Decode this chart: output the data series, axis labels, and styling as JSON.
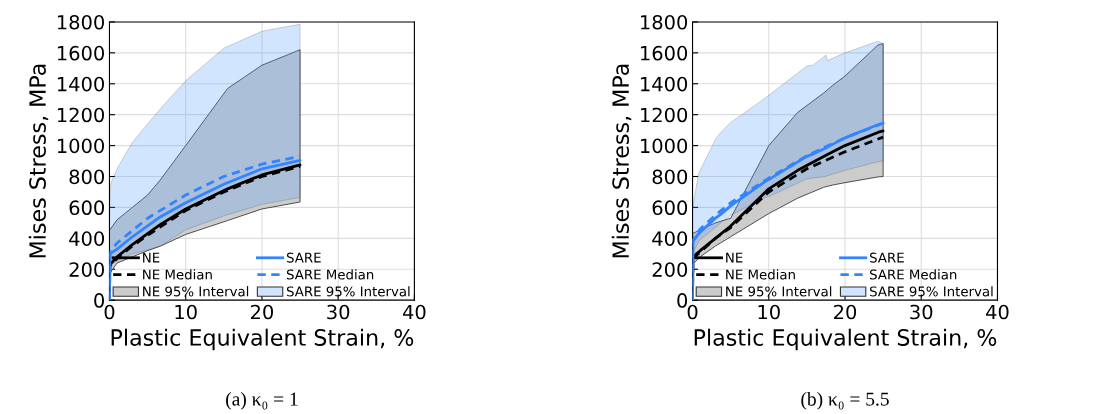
{
  "chart_data": [
    {
      "type": "line",
      "xlabel": "Plastic Equivalent Strain, %",
      "ylabel": "Mises Stress, MPa",
      "xlim": [
        0,
        40
      ],
      "ylim": [
        0,
        1800
      ],
      "xticks": [
        0,
        10,
        20,
        30,
        40
      ],
      "yticks": [
        0,
        200,
        400,
        600,
        800,
        1000,
        1200,
        1400,
        1600,
        1800
      ],
      "grid": true,
      "legend": "bottom",
      "annotations": [
        "(a) κ₀ = 1"
      ],
      "series": [
        {
          "name": "NE",
          "color": "#000000",
          "line_style": "solid",
          "x": [
            0,
            0.05,
            1,
            3,
            5,
            6.7,
            10,
            15.5,
            20,
            25
          ],
          "values": [
            0,
            230,
            280,
            360,
            430,
            490,
            590,
            720,
            810,
            875
          ],
          "lower": [
            170,
            175,
            240,
            280,
            320,
            350,
            425,
            515,
            590,
            635
          ],
          "upper": [
            450,
            455,
            520,
            600,
            680,
            780,
            1000,
            1370,
            1520,
            1620
          ]
        },
        {
          "name": "NE Median",
          "color": "#000000",
          "line_style": "dashed",
          "x": [
            0,
            0.05,
            1,
            3,
            5,
            10,
            15,
            20,
            25
          ],
          "values": [
            0,
            220,
            270,
            350,
            420,
            580,
            700,
            800,
            865
          ]
        },
        {
          "name": "NE 95% Interval",
          "type": "area",
          "color": "#cccccc"
        },
        {
          "name": "SARE",
          "color": "#3385ff",
          "line_style": "solid",
          "x": [
            0,
            0.05,
            0.2,
            1,
            3,
            5,
            6.7,
            10,
            15,
            20,
            25
          ],
          "values": [
            0,
            290,
            305,
            330,
            410,
            480,
            540,
            630,
            750,
            850,
            905
          ],
          "lower": [
            190,
            210,
            225,
            255,
            300,
            325,
            350,
            455,
            545,
            620,
            665
          ],
          "upper": [
            420,
            650,
            760,
            850,
            1020,
            1140,
            1240,
            1420,
            1630,
            1740,
            1785
          ]
        },
        {
          "name": "SARE Median",
          "color": "#3385ff",
          "line_style": "dashed",
          "x": [
            0,
            0.05,
            1,
            3,
            5,
            10,
            15,
            20,
            25
          ],
          "values": [
            0,
            310,
            370,
            450,
            530,
            680,
            800,
            880,
            930
          ]
        },
        {
          "name": "SARE 95% Interval",
          "type": "area",
          "color": "#d2e5ff"
        }
      ]
    },
    {
      "type": "line",
      "xlabel": "Plastic Equivalent Strain, %",
      "ylabel": "Mises Stress, MPa",
      "xlim": [
        0,
        40
      ],
      "ylim": [
        0,
        1800
      ],
      "xticks": [
        0,
        10,
        20,
        30,
        40
      ],
      "yticks": [
        0,
        200,
        400,
        600,
        800,
        1000,
        1200,
        1400,
        1600,
        1800
      ],
      "grid": true,
      "legend": "bottom",
      "annotations": [
        "(b) κ₀ = 5.5"
      ],
      "series": [
        {
          "name": "NE",
          "color": "#000000",
          "line_style": "solid",
          "x": [
            0,
            0.05,
            1,
            3,
            5,
            10,
            13.8,
            17.2,
            18.4,
            20,
            24.3,
            25
          ],
          "values": [
            0,
            280,
            320,
            400,
            480,
            720,
            840,
            930,
            960,
            1000,
            1085,
            1095
          ],
          "lower": [
            230,
            232,
            280,
            350,
            410,
            560,
            660,
            730,
            745,
            760,
            797,
            800
          ],
          "upper": [
            430,
            432,
            455,
            500,
            530,
            1000,
            1215,
            1340,
            1390,
            1450,
            1650,
            1660
          ]
        },
        {
          "name": "NE Median",
          "color": "#000000",
          "line_style": "dashed",
          "x": [
            0,
            0.05,
            1,
            3,
            5,
            10,
            15,
            20,
            25
          ],
          "values": [
            0,
            270,
            310,
            400,
            470,
            700,
            850,
            960,
            1055
          ]
        },
        {
          "name": "NE 95% Interval",
          "type": "area",
          "color": "#cccccc"
        },
        {
          "name": "SARE",
          "color": "#3385ff",
          "line_style": "solid",
          "x": [
            0,
            0.05,
            0.8,
            1,
            3,
            3.7,
            5,
            9.6,
            10,
            15,
            15.8,
            17.5,
            17.7,
            20,
            24.3,
            25
          ],
          "values": [
            0,
            380,
            430,
            440,
            530,
            555,
            610,
            770,
            780,
            930,
            945,
            985,
            990,
            1050,
            1135,
            1145
          ],
          "lower": [
            300,
            305,
            380,
            390,
            470,
            500,
            550,
            665,
            670,
            785,
            790,
            800,
            805,
            840,
            895,
            900
          ],
          "upper": [
            600,
            610,
            820,
            840,
            1040,
            1085,
            1150,
            1310,
            1325,
            1515,
            1520,
            1585,
            1550,
            1600,
            1675,
            1660
          ]
        },
        {
          "name": "SARE Median",
          "color": "#3385ff",
          "line_style": "dashed",
          "x": [
            0,
            0.05,
            1,
            3,
            5,
            10,
            15,
            20,
            25
          ],
          "values": [
            0,
            390,
            460,
            550,
            630,
            790,
            935,
            1050,
            1145
          ]
        },
        {
          "name": "SARE 95% Interval",
          "type": "area",
          "color": "#d2e5ff"
        }
      ]
    }
  ]
}
